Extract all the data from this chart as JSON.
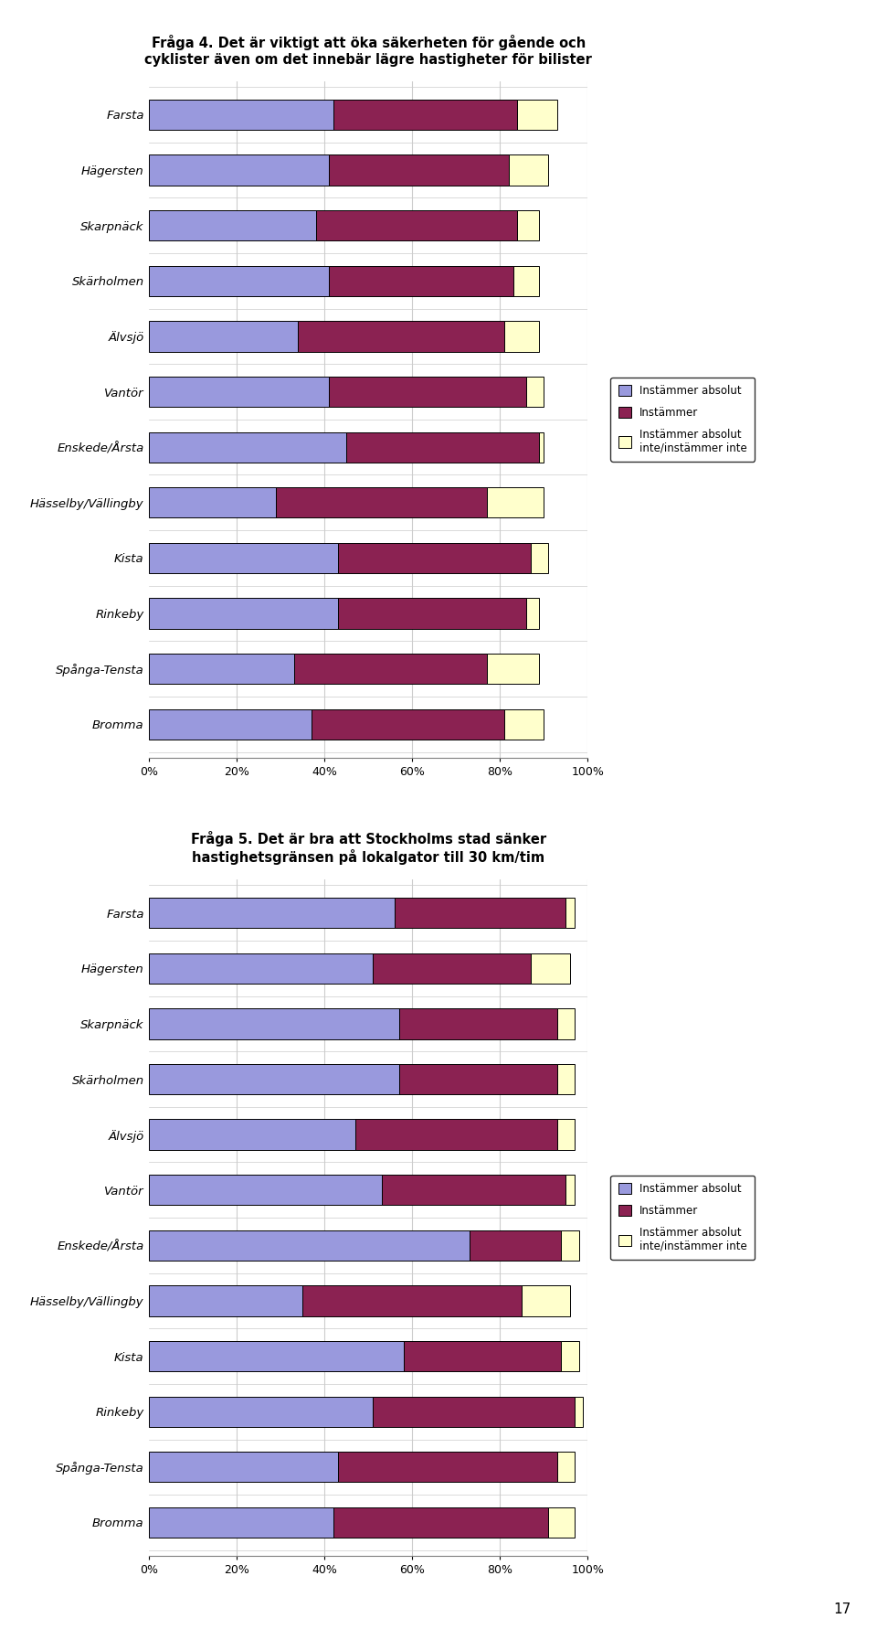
{
  "chart1": {
    "title": "Fråga 4. Det är viktigt att öka säkerheten för gående och\ncyklister även om det innebär lägre hastigheter för bilister",
    "categories": [
      "Farsta",
      "Hägersten",
      "Skarpnäck",
      "Skärholmen",
      "Älvsjö",
      "Vantör",
      "Enskede/Årsta",
      "Hässelby/Vällingby",
      "Kista",
      "Rinkeby",
      "Spånga-Tensta",
      "Bromma"
    ],
    "instammer_absolut": [
      0.42,
      0.41,
      0.38,
      0.41,
      0.34,
      0.41,
      0.45,
      0.29,
      0.43,
      0.43,
      0.33,
      0.37
    ],
    "instammer": [
      0.42,
      0.41,
      0.46,
      0.42,
      0.47,
      0.45,
      0.44,
      0.48,
      0.44,
      0.43,
      0.44,
      0.44
    ],
    "instammer_inte": [
      0.09,
      0.09,
      0.05,
      0.06,
      0.08,
      0.04,
      0.01,
      0.13,
      0.04,
      0.03,
      0.12,
      0.09
    ]
  },
  "chart2": {
    "title": "Fråga 5. Det är bra att Stockholms stad sänker\nhastighetsgränsen på lokalgator till 30 km/tim",
    "categories": [
      "Farsta",
      "Hägersten",
      "Skarpnäck",
      "Skärholmen",
      "Älvsjö",
      "Vantör",
      "Enskede/Årsta",
      "Hässelby/Vällingby",
      "Kista",
      "Rinkeby",
      "Spånga-Tensta",
      "Bromma"
    ],
    "instammer_absolut": [
      0.56,
      0.51,
      0.57,
      0.57,
      0.47,
      0.53,
      0.73,
      0.35,
      0.58,
      0.51,
      0.43,
      0.42
    ],
    "instammer": [
      0.39,
      0.36,
      0.36,
      0.36,
      0.46,
      0.42,
      0.21,
      0.5,
      0.36,
      0.46,
      0.5,
      0.49
    ],
    "instammer_inte": [
      0.02,
      0.09,
      0.04,
      0.04,
      0.04,
      0.02,
      0.04,
      0.11,
      0.04,
      0.02,
      0.04,
      0.06
    ]
  },
  "colors": {
    "instammer_absolut": "#9999DD",
    "instammer": "#8B2252",
    "instammer_inte": "#FFFFCC"
  },
  "background_color": "#ffffff",
  "page_number": "17",
  "bar_height": 0.55
}
